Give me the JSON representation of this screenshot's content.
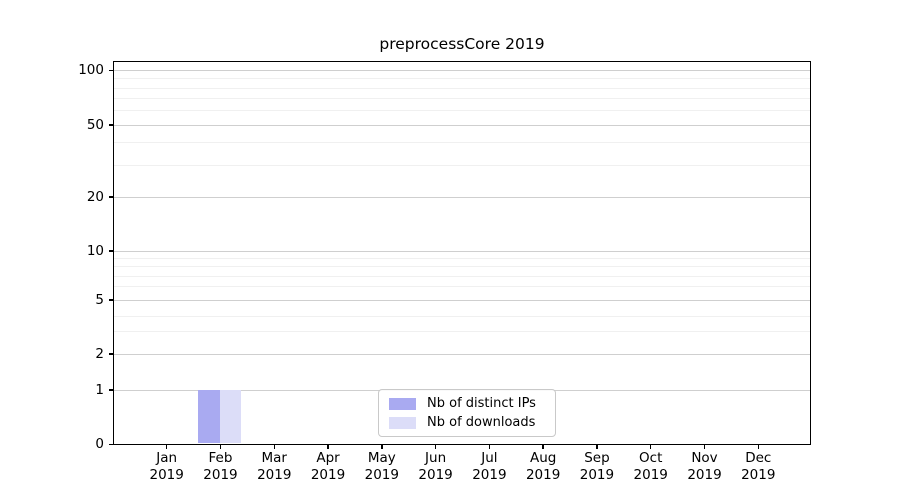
{
  "figure": {
    "title": "preprocessCore 2019"
  },
  "y_axis": {
    "tick_labels": [
      "100",
      "50",
      "20",
      "10",
      "5",
      "2",
      "1",
      "0"
    ]
  },
  "x_axis": {
    "months": [
      "Jan",
      "Feb",
      "Mar",
      "Apr",
      "May",
      "Jun",
      "Jul",
      "Aug",
      "Sep",
      "Oct",
      "Nov",
      "Dec"
    ],
    "year": "2019"
  },
  "legend": {
    "items": [
      {
        "label": "Nb of distinct IPs",
        "color": "#a9aaf1"
      },
      {
        "label": "Nb of downloads",
        "color": "#dcddf8"
      }
    ]
  },
  "colors": {
    "bar_distinct_ips": "#a9aaf1",
    "bar_downloads": "#dcddf8",
    "grid_major": "#cfcfcf",
    "grid_minor": "#f0f0f0",
    "axis": "#000000"
  },
  "chart_data": {
    "type": "bar",
    "title": "preprocessCore 2019",
    "categories": [
      "Jan 2019",
      "Feb 2019",
      "Mar 2019",
      "Apr 2019",
      "May 2019",
      "Jun 2019",
      "Jul 2019",
      "Aug 2019",
      "Sep 2019",
      "Oct 2019",
      "Nov 2019",
      "Dec 2019"
    ],
    "series": [
      {
        "name": "Nb of distinct IPs",
        "color": "#a9aaf1",
        "values": [
          0,
          1,
          0,
          0,
          0,
          0,
          0,
          0,
          0,
          0,
          0,
          0
        ]
      },
      {
        "name": "Nb of downloads",
        "color": "#dcddf8",
        "values": [
          0,
          1,
          0,
          0,
          0,
          0,
          0,
          0,
          0,
          0,
          0,
          0
        ]
      }
    ],
    "xlabel": "",
    "ylabel": "",
    "yticks": [
      0,
      1,
      2,
      5,
      10,
      20,
      50,
      100
    ],
    "yscale": "log-like with linear segment near 0",
    "ylim": [
      0,
      113
    ],
    "grid": "horizontal major + minor gridlines",
    "legend_position": "lower center (inside axes)"
  }
}
